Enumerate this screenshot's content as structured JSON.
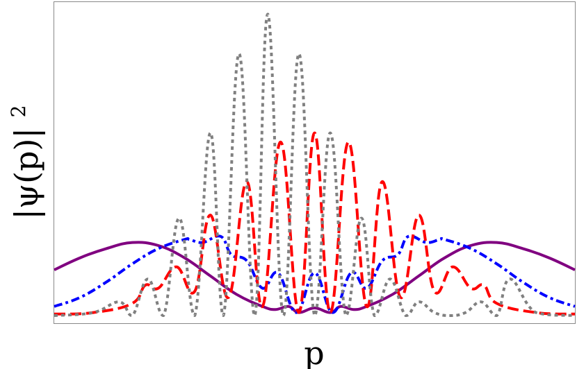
{
  "chart_data": {
    "type": "line",
    "title": "",
    "xlabel": "p",
    "ylabel": "|ψ(p)|²",
    "ylabel_base": "|ψ(p)|",
    "ylabel_exponent": "2",
    "grid": false,
    "legend": "none",
    "x_ticks": [],
    "y_ticks": [],
    "xlim": [
      -10,
      10
    ],
    "ylim": [
      0,
      1.0
    ],
    "series": [
      {
        "color": "#800080",
        "style": "solid",
        "x": [
          -10,
          -9,
          -8,
          -7,
          -6,
          -5,
          -4,
          -3,
          -2,
          -1.5,
          -1,
          -0.6,
          0,
          0.6,
          1,
          1.5,
          2,
          3,
          4,
          5,
          6,
          7,
          8,
          9,
          10
        ],
        "y": [
          0.15,
          0.19,
          0.22,
          0.24,
          0.23,
          0.19,
          0.13,
          0.07,
          0.03,
          0.02,
          0.03,
          0.01,
          0.025,
          0.01,
          0.03,
          0.02,
          0.03,
          0.07,
          0.13,
          0.19,
          0.23,
          0.24,
          0.22,
          0.19,
          0.15
        ]
      },
      {
        "color": "#0000ff",
        "style": "dashdot",
        "x": [
          -10,
          -9,
          -8,
          -7,
          -6,
          -5,
          -4.8,
          -4.3,
          -3.6,
          -3.2,
          -2.6,
          -2,
          -1.4,
          -0.7,
          0,
          0.7,
          1.4,
          2,
          2.6,
          3.2,
          3.6,
          4.3,
          4.8,
          5,
          6,
          7,
          8,
          9,
          10
        ],
        "y": [
          0.03,
          0.06,
          0.11,
          0.17,
          0.22,
          0.25,
          0.25,
          0.24,
          0.26,
          0.2,
          0.18,
          0.09,
          0.14,
          0.01,
          0.14,
          0.01,
          0.14,
          0.09,
          0.18,
          0.2,
          0.26,
          0.24,
          0.25,
          0.25,
          0.22,
          0.17,
          0.11,
          0.06,
          0.03
        ]
      },
      {
        "color": "#ff0000",
        "style": "dashed",
        "x": [
          -10,
          -8.5,
          -7,
          -6.5,
          -6,
          -5.3,
          -4.6,
          -4,
          -3.3,
          -2.6,
          -2,
          -1.3,
          -0.6,
          0,
          0.6,
          1.3,
          2,
          2.6,
          3.3,
          4,
          4.6,
          5.3,
          6,
          6.5,
          7,
          8.5,
          10
        ],
        "y": [
          0.005,
          0.01,
          0.04,
          0.1,
          0.09,
          0.16,
          0.08,
          0.33,
          0.06,
          0.44,
          0.03,
          0.57,
          0.01,
          0.6,
          0.01,
          0.57,
          0.03,
          0.44,
          0.06,
          0.33,
          0.08,
          0.16,
          0.09,
          0.1,
          0.04,
          0.01,
          0.005
        ]
      },
      {
        "color": "#808080",
        "style": "dotted",
        "x": [
          -10,
          -8.5,
          -7.5,
          -7,
          -6.4,
          -5.8,
          -5.2,
          -4.6,
          -4,
          -3.5,
          -2.9,
          -2.3,
          -1.8,
          -1.2,
          -0.6,
          0,
          0.6,
          1.2,
          1.8,
          2.3,
          2.9,
          3.5,
          4,
          4.6,
          5.2,
          5.8,
          6.4,
          7,
          7.5,
          8.5,
          10
        ],
        "y": [
          0,
          0.01,
          0.045,
          0,
          0.12,
          0,
          0.32,
          0,
          0.6,
          0,
          0.86,
          0,
          0.99,
          0,
          0.86,
          0,
          0.6,
          0,
          0.32,
          0,
          0.12,
          0,
          0.045,
          0.01,
          0,
          0.01,
          0.045,
          0,
          0.12,
          0.01,
          0
        ]
      }
    ]
  }
}
